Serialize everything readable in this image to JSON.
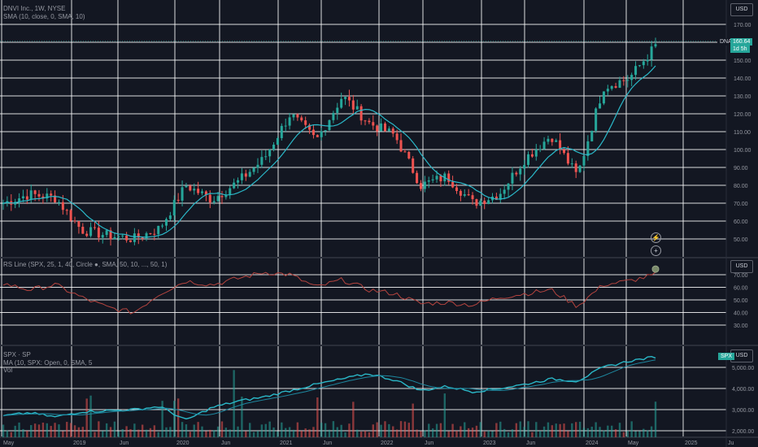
{
  "pane1": {
    "legend_line1": "DNVI Inc., 1W, NYSE",
    "legend_line2": "SMA (10, close, 0, SMA, 10)",
    "currency": "USD",
    "symbol_tag": "DNA",
    "last_price": "160.64",
    "countdown": "1d 5h",
    "price_ticks": [
      "170.00",
      "160.00",
      "150.00",
      "140.00",
      "130.00",
      "120.00",
      "110.00",
      "100.00",
      "90.00",
      "80.00",
      "70.00",
      "60.00",
      "50.00"
    ]
  },
  "pane2": {
    "legend": "RS Line (SPX, 25, 1, 40, Circle ●, SMA, 50, 10, ..., 50, 1)",
    "currency": "USD",
    "ticks": [
      "70.00",
      "60.00",
      "50.00",
      "40.00",
      "30.00"
    ]
  },
  "pane3": {
    "legend_line1": "SPX · SP",
    "legend_line2": "MA (10, SPX: Open, 0, SMA, 5",
    "legend_line3": "Vol",
    "currency": "USD",
    "tag": "SPX",
    "ticks": [
      "5,000.00",
      "4,000.00",
      "3,000.00",
      "2,000.00"
    ]
  },
  "x_axis": [
    "May",
    "2019",
    "Jun",
    "2020",
    "Jun",
    "2021",
    "Jun",
    "2022",
    "Jun",
    "2023",
    "Jun",
    "2024",
    "May",
    "2025",
    "Ju"
  ],
  "icons": [
    "lightning-icon",
    "plus-icon"
  ],
  "colors": {
    "up": "#26a69a",
    "down": "#ef5350",
    "sma": "#2ab8c8",
    "rs": "#b5443f",
    "grid": "#ffffff",
    "bg": "#131722"
  },
  "chart_data": [
    {
      "type": "candlestick",
      "title": "DNVI Inc., 1W, NYSE",
      "ylabel": "USD",
      "ylim": [
        40,
        175
      ],
      "x": [
        "2018-05",
        "2018-08",
        "2018-11",
        "2019-02",
        "2019-05",
        "2019-08",
        "2019-11",
        "2020-02",
        "2020-05",
        "2020-08",
        "2020-11",
        "2021-02",
        "2021-05",
        "2021-08",
        "2021-11",
        "2022-02",
        "2022-05",
        "2022-08",
        "2022-11",
        "2023-02",
        "2023-05",
        "2023-08",
        "2023-11",
        "2024-02",
        "2024-05",
        "2024-08"
      ],
      "close": [
        70,
        75,
        73,
        55,
        52,
        50,
        56,
        80,
        72,
        82,
        95,
        120,
        105,
        130,
        115,
        108,
        80,
        85,
        70,
        75,
        95,
        108,
        85,
        135,
        140,
        158
      ],
      "sma_name": "SMA (10, close, 0, SMA, 10)"
    },
    {
      "type": "line",
      "title": "RS Line",
      "ylim": [
        25,
        75
      ],
      "values": [
        63,
        58,
        62,
        52,
        44,
        40,
        55,
        65,
        62,
        67,
        72,
        70,
        60,
        66,
        58,
        55,
        47,
        48,
        46,
        52,
        55,
        58,
        45,
        62,
        65,
        70
      ]
    },
    {
      "type": "line",
      "title": "SPX",
      "ylim": [
        1900,
        5700
      ],
      "values": [
        2700,
        2850,
        2650,
        2900,
        2950,
        3000,
        3150,
        2500,
        3100,
        3400,
        3600,
        3900,
        4200,
        4450,
        4700,
        4400,
        3900,
        4100,
        3850,
        4000,
        4200,
        4450,
        4350,
        5000,
        5300,
        5500
      ]
    }
  ]
}
